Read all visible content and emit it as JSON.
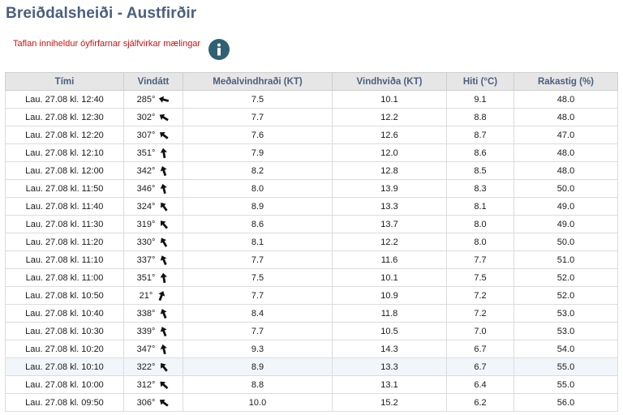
{
  "page": {
    "title": "Breiðdalsheiði - Austfirðir",
    "notice": "Taflan inniheldur óyfirfarnar sjálfvirkar mælingar",
    "info_icon": "info-icon"
  },
  "table": {
    "headers": [
      "Tími",
      "Vindátt",
      "Meðalvindhraði (KT)",
      "Vindhviða (KT)",
      "Hiti (°C)",
      "Rakastig (%)"
    ],
    "rows": [
      {
        "time": "Lau. 27.08 kl. 12:40",
        "dir": "285°",
        "deg": 285,
        "mean": "7.5",
        "gust": "10.1",
        "temp": "9.1",
        "hum": "48.0"
      },
      {
        "time": "Lau. 27.08 kl. 12:30",
        "dir": "302°",
        "deg": 302,
        "mean": "7.7",
        "gust": "12.2",
        "temp": "8.8",
        "hum": "48.0"
      },
      {
        "time": "Lau. 27.08 kl. 12:20",
        "dir": "307°",
        "deg": 307,
        "mean": "7.6",
        "gust": "12.6",
        "temp": "8.7",
        "hum": "47.0"
      },
      {
        "time": "Lau. 27.08 kl. 12:10",
        "dir": "351°",
        "deg": 351,
        "mean": "7.9",
        "gust": "12.0",
        "temp": "8.6",
        "hum": "48.0"
      },
      {
        "time": "Lau. 27.08 kl. 12:00",
        "dir": "342°",
        "deg": 342,
        "mean": "8.2",
        "gust": "12.8",
        "temp": "8.5",
        "hum": "48.0"
      },
      {
        "time": "Lau. 27.08 kl. 11:50",
        "dir": "346°",
        "deg": 346,
        "mean": "8.0",
        "gust": "13.9",
        "temp": "8.3",
        "hum": "50.0"
      },
      {
        "time": "Lau. 27.08 kl. 11:40",
        "dir": "324°",
        "deg": 324,
        "mean": "8.9",
        "gust": "13.3",
        "temp": "8.1",
        "hum": "49.0"
      },
      {
        "time": "Lau. 27.08 kl. 11:30",
        "dir": "319°",
        "deg": 319,
        "mean": "8.6",
        "gust": "13.7",
        "temp": "8.0",
        "hum": "49.0"
      },
      {
        "time": "Lau. 27.08 kl. 11:20",
        "dir": "330°",
        "deg": 330,
        "mean": "8.1",
        "gust": "12.2",
        "temp": "8.0",
        "hum": "50.0"
      },
      {
        "time": "Lau. 27.08 kl. 11:10",
        "dir": "337°",
        "deg": 337,
        "mean": "7.7",
        "gust": "11.6",
        "temp": "7.7",
        "hum": "51.0"
      },
      {
        "time": "Lau. 27.08 kl. 11:00",
        "dir": "351°",
        "deg": 351,
        "mean": "7.5",
        "gust": "10.1",
        "temp": "7.5",
        "hum": "52.0"
      },
      {
        "time": "Lau. 27.08 kl. 10:50",
        "dir": "21°",
        "deg": 21,
        "mean": "7.7",
        "gust": "10.9",
        "temp": "7.2",
        "hum": "52.0"
      },
      {
        "time": "Lau. 27.08 kl. 10:40",
        "dir": "338°",
        "deg": 338,
        "mean": "8.4",
        "gust": "11.8",
        "temp": "7.2",
        "hum": "53.0"
      },
      {
        "time": "Lau. 27.08 kl. 10:30",
        "dir": "339°",
        "deg": 339,
        "mean": "7.7",
        "gust": "10.5",
        "temp": "7.0",
        "hum": "53.0"
      },
      {
        "time": "Lau. 27.08 kl. 10:20",
        "dir": "347°",
        "deg": 347,
        "mean": "9.3",
        "gust": "14.3",
        "temp": "6.7",
        "hum": "54.0"
      },
      {
        "time": "Lau. 27.08 kl. 10:10",
        "dir": "322°",
        "deg": 322,
        "mean": "8.9",
        "gust": "13.3",
        "temp": "6.7",
        "hum": "55.0"
      },
      {
        "time": "Lau. 27.08 kl. 10:00",
        "dir": "312°",
        "deg": 312,
        "mean": "8.8",
        "gust": "13.1",
        "temp": "6.4",
        "hum": "55.0"
      },
      {
        "time": "Lau. 27.08 kl. 09:50",
        "dir": "306°",
        "deg": 306,
        "mean": "10.0",
        "gust": "15.2",
        "temp": "6.2",
        "hum": "56.0"
      }
    ],
    "highlight_row": 15
  },
  "colors": {
    "title": "#4a5f7f",
    "notice": "#cc1111",
    "info_bg": "#2e6171",
    "header_bg": "#e6e6e6",
    "highlight_bg": "#f2f6fb"
  }
}
